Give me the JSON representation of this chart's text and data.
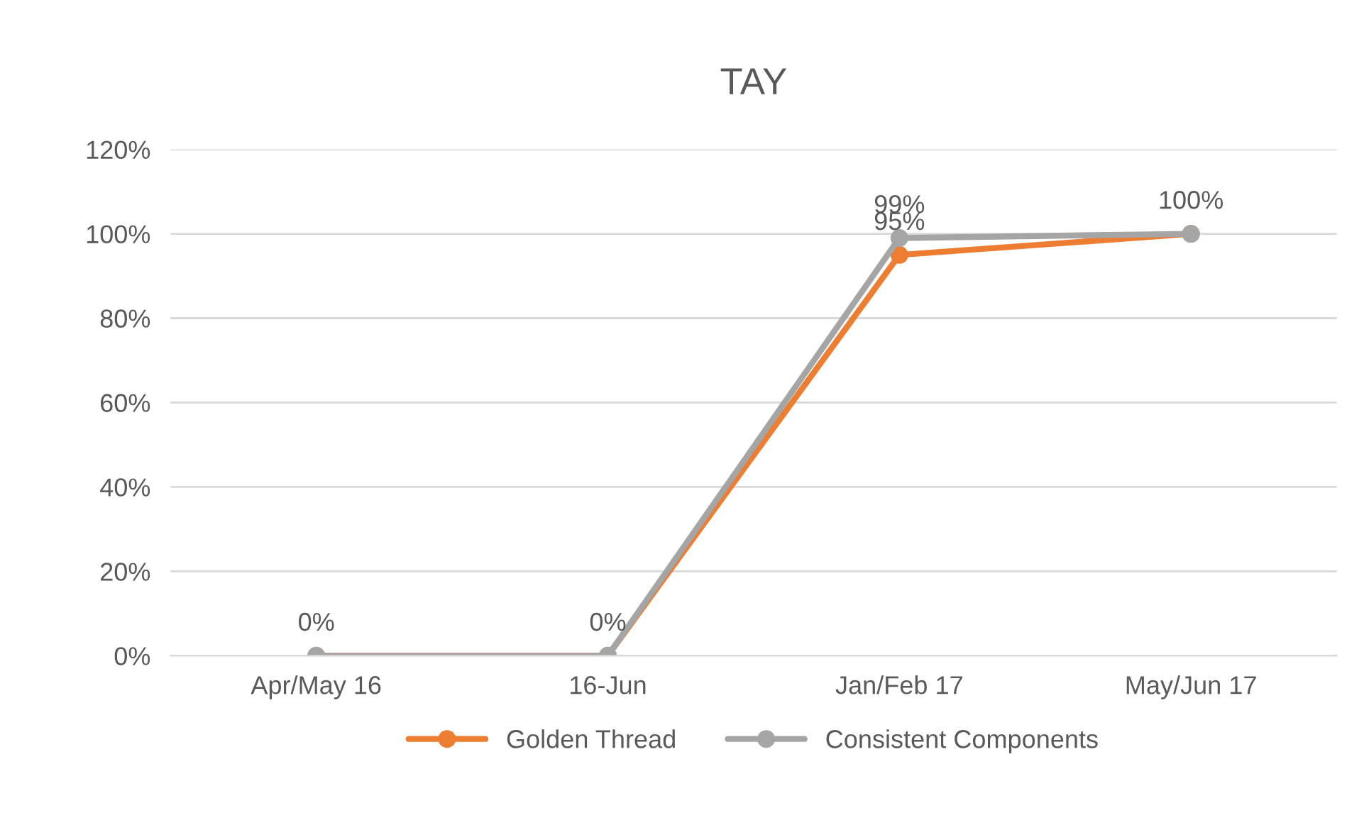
{
  "chart_data": {
    "type": "line",
    "title": "TAY",
    "categories": [
      "Apr/May 16",
      "16-Jun",
      "Jan/Feb 17",
      "May/Jun 17"
    ],
    "series": [
      {
        "name": "Golden Thread",
        "color": "#ed7d31",
        "values": [
          0,
          0,
          95,
          100
        ],
        "value_labels": [
          null,
          null,
          "95%",
          null
        ]
      },
      {
        "name": "Consistent Components",
        "color": "#a5a5a5",
        "values": [
          0,
          0,
          99,
          100
        ],
        "value_labels": [
          "0%",
          "0%",
          "99%",
          "100%"
        ]
      }
    ],
    "ylim": [
      0,
      120
    ],
    "yticks": [
      {
        "value": 0,
        "label": "0%"
      },
      {
        "value": 20,
        "label": "20%"
      },
      {
        "value": 40,
        "label": "40%"
      },
      {
        "value": 60,
        "label": "60%"
      },
      {
        "value": 80,
        "label": "80%"
      },
      {
        "value": 100,
        "label": "100%"
      },
      {
        "value": 120,
        "label": "120%"
      }
    ],
    "grid": "y",
    "legend": "bottom",
    "marker": "circle",
    "line_style": "solid"
  }
}
